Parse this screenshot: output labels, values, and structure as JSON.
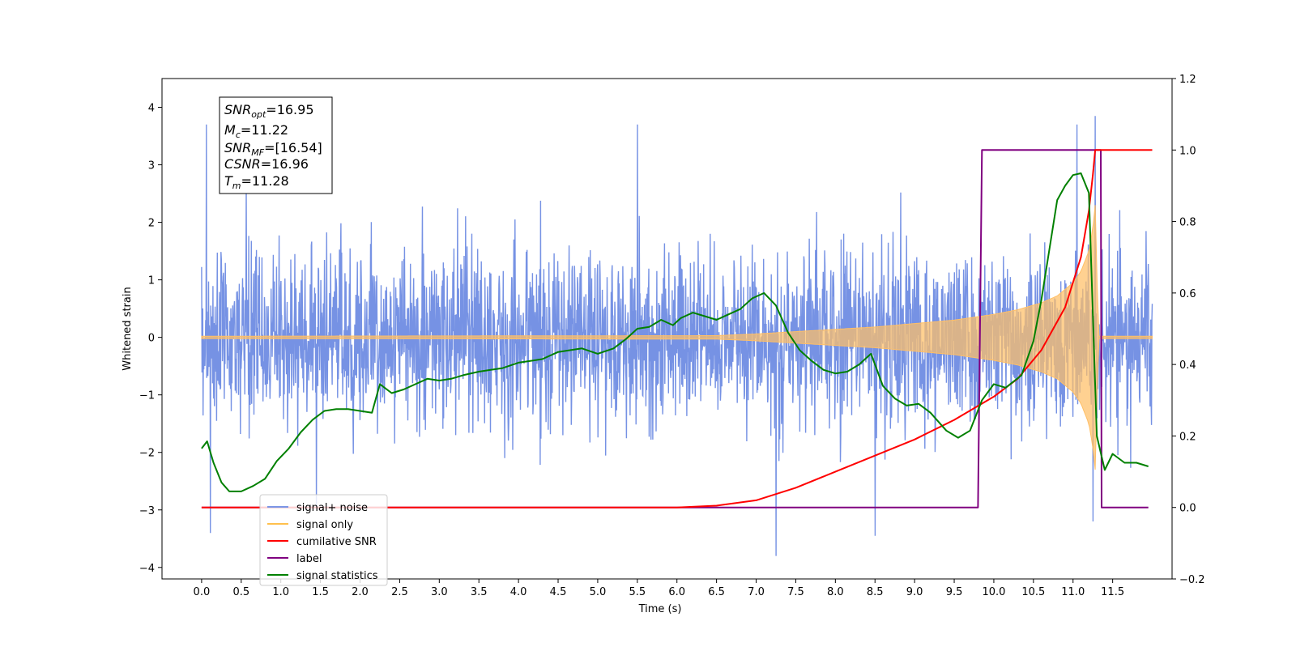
{
  "chart_data": {
    "type": "line",
    "xlabel": "Time (s)",
    "ylabel": "Whitened strain",
    "xlim": [
      -0.5,
      12.25
    ],
    "ylim_left": [
      -4.2,
      4.5
    ],
    "ylim_right": [
      -0.2,
      1.2
    ],
    "x_ticks": [
      "0.0",
      "0.5",
      "1.0",
      "1.5",
      "2.0",
      "2.5",
      "3.0",
      "3.5",
      "4.0",
      "4.5",
      "5.0",
      "5.5",
      "6.0",
      "6.5",
      "7.0",
      "7.5",
      "8.0",
      "8.5",
      "9.0",
      "9.5",
      "10.0",
      "10.5",
      "11.0",
      "11.5"
    ],
    "y_ticks_left": [
      "−4",
      "−3",
      "−2",
      "−1",
      "0",
      "1",
      "2",
      "3",
      "4"
    ],
    "y_ticks_right": [
      "−0.2",
      "0.0",
      "0.2",
      "0.4",
      "0.6",
      "0.8",
      "1.0",
      "1.2"
    ],
    "annotation": {
      "snr_opt": "=16.95",
      "mc": "=11.22",
      "snr_mf": "=[16.54]",
      "csnr": "=16.96",
      "tm": "=11.28"
    },
    "legend": {
      "location": "lower left",
      "entries": [
        {
          "label": "signal+ noise",
          "color": "#7b96e6"
        },
        {
          "label": "signal only",
          "color": "#ffc04d"
        },
        {
          "label": "cumilative SNR",
          "color": "#ff0000"
        },
        {
          "label": "label",
          "color": "#800080"
        },
        {
          "label": "signal statistics",
          "color": "#008000"
        }
      ]
    },
    "series": [
      {
        "name": "signal+ noise",
        "axis": "left",
        "color": "#6f8ce3",
        "noise_std": 0.75,
        "x_start": 0.0,
        "x_end": 12.0,
        "notable_extrema": [
          [
            0.06,
            3.7
          ],
          [
            0.11,
            -3.4
          ],
          [
            5.5,
            3.7
          ],
          [
            7.25,
            -3.8
          ],
          [
            8.5,
            -3.45
          ],
          [
            11.05,
            3.7
          ],
          [
            11.28,
            3.85
          ],
          [
            11.25,
            -3.2
          ]
        ]
      },
      {
        "name": "signal only",
        "axis": "left",
        "color": "#ffbf66",
        "x": [
          0.0,
          6.5,
          7.0,
          7.5,
          8.0,
          8.5,
          9.0,
          9.5,
          10.0,
          10.3,
          10.6,
          10.8,
          11.0,
          11.1,
          11.2,
          11.25,
          11.28,
          11.32,
          12.0
        ],
        "amplitude": [
          0.02,
          0.03,
          0.06,
          0.1,
          0.14,
          0.18,
          0.24,
          0.3,
          0.4,
          0.48,
          0.6,
          0.72,
          0.95,
          1.15,
          1.5,
          1.9,
          2.3,
          0.02,
          0.02
        ]
      },
      {
        "name": "cumilative SNR",
        "axis": "right",
        "color": "#ff0000",
        "x": [
          0.0,
          6.0,
          6.5,
          7.0,
          7.5,
          8.0,
          8.5,
          9.0,
          9.5,
          10.0,
          10.3,
          10.6,
          10.9,
          11.1,
          11.2,
          11.25,
          11.28,
          12.0
        ],
        "y": [
          0.0,
          0.0,
          0.005,
          0.02,
          0.055,
          0.1,
          0.145,
          0.19,
          0.245,
          0.31,
          0.36,
          0.44,
          0.56,
          0.7,
          0.83,
          0.93,
          1.0,
          1.0
        ]
      },
      {
        "name": "label",
        "axis": "right",
        "color": "#800080",
        "x": [
          0.0,
          9.8,
          9.85,
          11.35,
          11.36,
          11.95
        ],
        "y": [
          0.0,
          0.0,
          1.0,
          1.0,
          0.0,
          0.0
        ]
      },
      {
        "name": "signal statistics",
        "axis": "right",
        "color": "#008000",
        "x": [
          0.0,
          0.07,
          0.15,
          0.25,
          0.35,
          0.5,
          0.65,
          0.8,
          0.95,
          1.1,
          1.25,
          1.4,
          1.55,
          1.7,
          1.85,
          2.0,
          2.15,
          2.25,
          2.4,
          2.55,
          2.7,
          2.85,
          3.0,
          3.15,
          3.3,
          3.5,
          3.65,
          3.8,
          4.0,
          4.15,
          4.3,
          4.5,
          4.65,
          4.8,
          5.0,
          5.2,
          5.35,
          5.5,
          5.65,
          5.8,
          5.95,
          6.05,
          6.2,
          6.35,
          6.5,
          6.65,
          6.8,
          6.95,
          7.1,
          7.25,
          7.4,
          7.55,
          7.7,
          7.85,
          8.0,
          8.15,
          8.3,
          8.45,
          8.6,
          8.75,
          8.9,
          9.05,
          9.2,
          9.4,
          9.55,
          9.7,
          9.85,
          10.0,
          10.15,
          10.35,
          10.5,
          10.6,
          10.7,
          10.8,
          10.9,
          11.0,
          11.1,
          11.2,
          11.3,
          11.4,
          11.5,
          11.65,
          11.8,
          11.95
        ],
        "y": [
          0.165,
          0.185,
          0.125,
          0.07,
          0.045,
          0.045,
          0.06,
          0.08,
          0.13,
          0.165,
          0.21,
          0.245,
          0.27,
          0.275,
          0.275,
          0.27,
          0.265,
          0.345,
          0.32,
          0.33,
          0.345,
          0.36,
          0.355,
          0.36,
          0.37,
          0.38,
          0.385,
          0.39,
          0.405,
          0.41,
          0.415,
          0.435,
          0.44,
          0.445,
          0.43,
          0.445,
          0.47,
          0.5,
          0.505,
          0.525,
          0.51,
          0.53,
          0.545,
          0.535,
          0.525,
          0.54,
          0.555,
          0.585,
          0.6,
          0.565,
          0.49,
          0.44,
          0.41,
          0.385,
          0.375,
          0.38,
          0.4,
          0.43,
          0.34,
          0.305,
          0.285,
          0.29,
          0.265,
          0.215,
          0.195,
          0.215,
          0.3,
          0.345,
          0.335,
          0.37,
          0.465,
          0.58,
          0.72,
          0.86,
          0.9,
          0.93,
          0.935,
          0.88,
          0.2,
          0.105,
          0.15,
          0.125,
          0.125,
          0.115
        ]
      }
    ]
  }
}
